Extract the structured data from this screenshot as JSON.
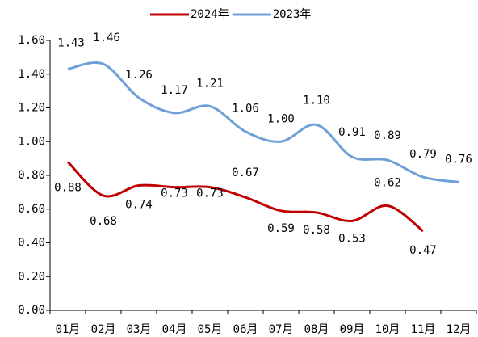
{
  "chart_data": {
    "type": "line",
    "categories": [
      "01月",
      "02月",
      "03月",
      "04月",
      "05月",
      "06月",
      "07月",
      "08月",
      "09月",
      "10月",
      "11月",
      "12月"
    ],
    "series": [
      {
        "name": "2024年",
        "color": "#c00000",
        "values": [
          0.88,
          0.68,
          0.74,
          0.73,
          0.73,
          0.67,
          0.59,
          0.58,
          0.53,
          0.62,
          0.47,
          null
        ],
        "value_labels": [
          "0.88",
          "0.68",
          "0.74",
          "0.73",
          "0.73",
          "0.67",
          "0.59",
          "0.58",
          "0.53",
          "0.62",
          "0.47",
          null
        ]
      },
      {
        "name": "2023年",
        "color": "#6fa0d8",
        "values": [
          1.43,
          1.46,
          1.26,
          1.17,
          1.21,
          1.06,
          1.0,
          1.1,
          0.91,
          0.89,
          0.79,
          0.76
        ],
        "value_labels": [
          "1.43",
          "1.46",
          "1.26",
          "1.17",
          "1.21",
          "1.06",
          "1.00",
          "1.10",
          "0.91",
          "0.89",
          "0.79",
          "0.76"
        ]
      }
    ],
    "ylim": [
      0,
      1.6
    ],
    "yticks": [
      {
        "value": 0,
        "label": "0.00"
      },
      {
        "value": 0.2,
        "label": "0.20"
      },
      {
        "value": 0.4,
        "label": "0.40"
      },
      {
        "value": 0.6,
        "label": "0.60"
      },
      {
        "value": 0.8,
        "label": "0.80"
      },
      {
        "value": 1.0,
        "label": "1.00"
      },
      {
        "value": 1.2,
        "label": "1.20"
      },
      {
        "value": 1.4,
        "label": "1.40"
      },
      {
        "value": 1.6,
        "label": "1.60"
      }
    ],
    "legend": "top"
  }
}
